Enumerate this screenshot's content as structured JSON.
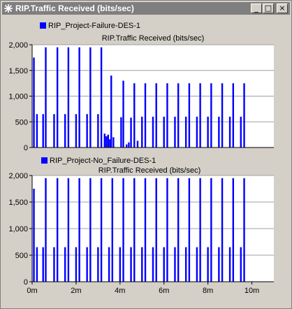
{
  "window": {
    "title": "RIP.Traffic Received (bits/sec)",
    "minimize_glyph": "_",
    "maximize_glyph": "□",
    "close_glyph": "×"
  },
  "colors": {
    "series": "#0000ff",
    "plot_background": "#ffffff",
    "grid": "#a0a0a0",
    "titlebar": "#7f7f7f"
  },
  "chart_data": [
    {
      "type": "bar",
      "title": "RIP.Traffic Received (bits/sec)",
      "legend": "RIP_Project-Failure-DES-1",
      "ylim": [
        0,
        2000
      ],
      "yticks": [
        0,
        500,
        1000,
        1500,
        2000
      ],
      "ytick_labels": [
        "0",
        "500",
        "1,000",
        "1,500",
        "2,000"
      ],
      "xlim": [
        0,
        11
      ],
      "grid": true,
      "series": [
        {
          "name": "RIP_Project-Failure-DES-1",
          "points": [
            {
              "x": 0.08,
              "y": 1750
            },
            {
              "x": 0.22,
              "y": 650
            },
            {
              "x": 0.5,
              "y": 650
            },
            {
              "x": 0.62,
              "y": 1950
            },
            {
              "x": 1.0,
              "y": 650
            },
            {
              "x": 1.15,
              "y": 1950
            },
            {
              "x": 1.5,
              "y": 650
            },
            {
              "x": 1.65,
              "y": 1950
            },
            {
              "x": 2.0,
              "y": 650
            },
            {
              "x": 2.15,
              "y": 1950
            },
            {
              "x": 2.5,
              "y": 650
            },
            {
              "x": 2.65,
              "y": 1950
            },
            {
              "x": 3.0,
              "y": 650
            },
            {
              "x": 3.15,
              "y": 1950
            },
            {
              "x": 3.3,
              "y": 270
            },
            {
              "x": 3.38,
              "y": 220
            },
            {
              "x": 3.46,
              "y": 250
            },
            {
              "x": 3.54,
              "y": 160
            },
            {
              "x": 3.6,
              "y": 1400
            },
            {
              "x": 3.7,
              "y": 200
            },
            {
              "x": 4.05,
              "y": 590
            },
            {
              "x": 4.15,
              "y": 1300
            },
            {
              "x": 4.3,
              "y": 60
            },
            {
              "x": 4.4,
              "y": 100
            },
            {
              "x": 4.5,
              "y": 580
            },
            {
              "x": 4.65,
              "y": 1250
            },
            {
              "x": 4.8,
              "y": 130
            },
            {
              "x": 5.0,
              "y": 600
            },
            {
              "x": 5.15,
              "y": 1250
            },
            {
              "x": 5.5,
              "y": 600
            },
            {
              "x": 5.65,
              "y": 1250
            },
            {
              "x": 6.0,
              "y": 600
            },
            {
              "x": 6.15,
              "y": 1250
            },
            {
              "x": 6.5,
              "y": 600
            },
            {
              "x": 6.65,
              "y": 1250
            },
            {
              "x": 7.0,
              "y": 600
            },
            {
              "x": 7.15,
              "y": 1250
            },
            {
              "x": 7.5,
              "y": 600
            },
            {
              "x": 7.65,
              "y": 1250
            },
            {
              "x": 8.0,
              "y": 600
            },
            {
              "x": 8.15,
              "y": 1250
            },
            {
              "x": 8.5,
              "y": 600
            },
            {
              "x": 8.65,
              "y": 1250
            },
            {
              "x": 9.0,
              "y": 600
            },
            {
              "x": 9.15,
              "y": 1250
            },
            {
              "x": 9.5,
              "y": 600
            },
            {
              "x": 9.65,
              "y": 1250
            }
          ]
        }
      ]
    },
    {
      "type": "bar",
      "title": "RIP.Traffic Received (bits/sec)",
      "legend": "RIP_Project-No_Failure-DES-1",
      "ylim": [
        0,
        2000
      ],
      "yticks": [
        0,
        500,
        1000,
        1500,
        2000
      ],
      "ytick_labels": [
        "0",
        "500",
        "1,000",
        "1,500",
        "2,000"
      ],
      "xlim": [
        0,
        11
      ],
      "xticks": [
        0,
        2,
        4,
        6,
        8,
        10
      ],
      "xtick_labels": [
        "0m",
        "2m",
        "4m",
        "6m",
        "8m",
        "10m"
      ],
      "grid": true,
      "series": [
        {
          "name": "RIP_Project-No_Failure-DES-1",
          "points": [
            {
              "x": 0.08,
              "y": 1750
            },
            {
              "x": 0.22,
              "y": 650
            },
            {
              "x": 0.5,
              "y": 650
            },
            {
              "x": 0.62,
              "y": 1950
            },
            {
              "x": 1.0,
              "y": 650
            },
            {
              "x": 1.15,
              "y": 1950
            },
            {
              "x": 1.5,
              "y": 650
            },
            {
              "x": 1.65,
              "y": 1950
            },
            {
              "x": 2.0,
              "y": 650
            },
            {
              "x": 2.15,
              "y": 1950
            },
            {
              "x": 2.5,
              "y": 650
            },
            {
              "x": 2.65,
              "y": 1950
            },
            {
              "x": 3.0,
              "y": 650
            },
            {
              "x": 3.15,
              "y": 1950
            },
            {
              "x": 3.5,
              "y": 650
            },
            {
              "x": 3.65,
              "y": 1950
            },
            {
              "x": 4.0,
              "y": 650
            },
            {
              "x": 4.15,
              "y": 1950
            },
            {
              "x": 4.5,
              "y": 650
            },
            {
              "x": 4.65,
              "y": 1950
            },
            {
              "x": 5.0,
              "y": 650
            },
            {
              "x": 5.15,
              "y": 1950
            },
            {
              "x": 5.5,
              "y": 650
            },
            {
              "x": 5.65,
              "y": 1950
            },
            {
              "x": 6.0,
              "y": 650
            },
            {
              "x": 6.15,
              "y": 1950
            },
            {
              "x": 6.5,
              "y": 650
            },
            {
              "x": 6.65,
              "y": 1950
            },
            {
              "x": 7.0,
              "y": 650
            },
            {
              "x": 7.15,
              "y": 1950
            },
            {
              "x": 7.5,
              "y": 650
            },
            {
              "x": 7.65,
              "y": 1950
            },
            {
              "x": 8.0,
              "y": 650
            },
            {
              "x": 8.15,
              "y": 1950
            },
            {
              "x": 8.5,
              "y": 650
            },
            {
              "x": 8.65,
              "y": 1950
            },
            {
              "x": 9.0,
              "y": 650
            },
            {
              "x": 9.15,
              "y": 1950
            },
            {
              "x": 9.5,
              "y": 650
            },
            {
              "x": 9.65,
              "y": 1950
            }
          ]
        }
      ]
    }
  ]
}
